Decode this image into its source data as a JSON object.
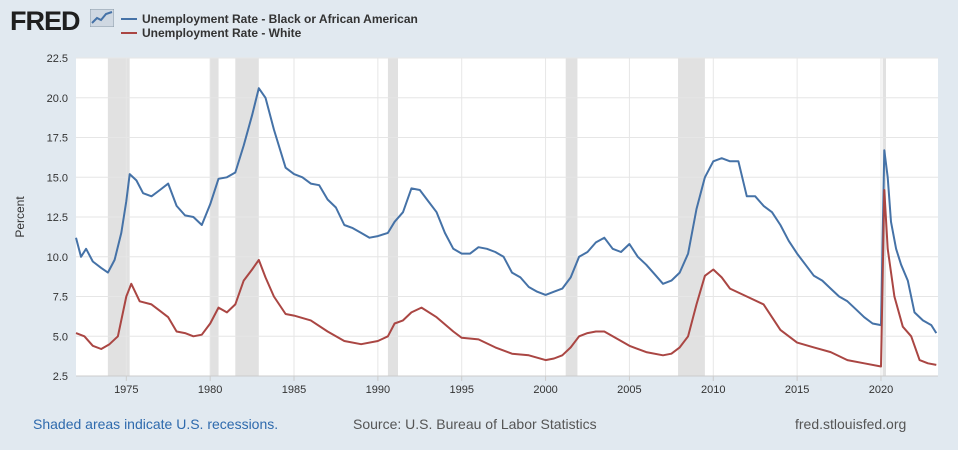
{
  "header": {
    "logo_text": "FRED",
    "logo_icon": "chart-line-icon"
  },
  "footer": {
    "recession_note": "Shaded areas indicate U.S. recessions.",
    "source": "Source: U.S. Bureau of Labor Statistics",
    "site": "fred.stlouisfed.org"
  },
  "chart_data": {
    "type": "line",
    "title": "",
    "xlabel": "",
    "ylabel": "Percent",
    "xlim": [
      1972.0,
      2023.4
    ],
    "ylim": [
      2.5,
      22.5
    ],
    "yticks": [
      2.5,
      5.0,
      7.5,
      10.0,
      12.5,
      15.0,
      17.5,
      20.0,
      22.5
    ],
    "ytick_labels": [
      "2.5",
      "5.0",
      "7.5",
      "10.0",
      "12.5",
      "15.0",
      "17.5",
      "20.0",
      "22.5"
    ],
    "xticks": [
      1975,
      1980,
      1985,
      1990,
      1995,
      2000,
      2005,
      2010,
      2015,
      2020
    ],
    "xtick_labels": [
      "1975",
      "1980",
      "1985",
      "1990",
      "1995",
      "2000",
      "2005",
      "2010",
      "2015",
      "2020"
    ],
    "grid": true,
    "legend": "top-left",
    "recessions": [
      [
        1973.9,
        1975.2
      ],
      [
        1980.0,
        1980.5
      ],
      [
        1981.5,
        1982.9
      ],
      [
        1990.6,
        1991.2
      ],
      [
        2001.2,
        2001.9
      ],
      [
        2007.9,
        2009.5
      ],
      [
        2020.1,
        2020.3
      ]
    ],
    "series": [
      {
        "name": "Unemployment Rate - Black or African American",
        "color": "#4572a7",
        "x": [
          1972.0,
          1972.3,
          1972.6,
          1973.0,
          1973.5,
          1973.9,
          1974.3,
          1974.7,
          1975.0,
          1975.2,
          1975.6,
          1976.0,
          1976.5,
          1977.0,
          1977.5,
          1978.0,
          1978.5,
          1979.0,
          1979.5,
          1980.0,
          1980.5,
          1981.0,
          1981.5,
          1982.0,
          1982.5,
          1982.9,
          1983.3,
          1983.8,
          1984.5,
          1985.0,
          1985.5,
          1986.0,
          1986.5,
          1987.0,
          1987.5,
          1988.0,
          1988.5,
          1989.0,
          1989.5,
          1990.0,
          1990.6,
          1991.0,
          1991.5,
          1992.0,
          1992.5,
          1993.0,
          1993.5,
          1994.0,
          1994.5,
          1995.0,
          1995.5,
          1996.0,
          1996.5,
          1997.0,
          1997.5,
          1998.0,
          1998.5,
          1999.0,
          1999.5,
          2000.0,
          2000.5,
          2001.0,
          2001.5,
          2002.0,
          2002.5,
          2003.0,
          2003.5,
          2004.0,
          2004.5,
          2005.0,
          2005.5,
          2006.0,
          2006.5,
          2007.0,
          2007.5,
          2008.0,
          2008.5,
          2009.0,
          2009.5,
          2010.0,
          2010.5,
          2011.0,
          2011.5,
          2012.0,
          2012.5,
          2013.0,
          2013.5,
          2014.0,
          2014.5,
          2015.0,
          2015.5,
          2016.0,
          2016.5,
          2017.0,
          2017.5,
          2018.0,
          2018.5,
          2019.0,
          2019.5,
          2020.0,
          2020.2,
          2020.4,
          2020.6,
          2020.9,
          2021.2,
          2021.6,
          2022.0,
          2022.5,
          2023.0,
          2023.3
        ],
        "values": [
          11.2,
          10.0,
          10.5,
          9.7,
          9.3,
          9.0,
          9.8,
          11.5,
          13.5,
          15.2,
          14.8,
          14.0,
          13.8,
          14.2,
          14.6,
          13.2,
          12.6,
          12.5,
          12.0,
          13.3,
          14.9,
          15.0,
          15.3,
          17.0,
          18.9,
          20.6,
          20.0,
          18.0,
          15.6,
          15.2,
          15.0,
          14.6,
          14.5,
          13.6,
          13.1,
          12.0,
          11.8,
          11.5,
          11.2,
          11.3,
          11.5,
          12.2,
          12.8,
          14.3,
          14.2,
          13.5,
          12.8,
          11.5,
          10.5,
          10.2,
          10.2,
          10.6,
          10.5,
          10.3,
          10.0,
          9.0,
          8.7,
          8.1,
          7.8,
          7.6,
          7.8,
          8.0,
          8.7,
          10.0,
          10.3,
          10.9,
          11.2,
          10.5,
          10.3,
          10.8,
          10.0,
          9.5,
          8.9,
          8.3,
          8.5,
          9.0,
          10.2,
          13.0,
          15.0,
          16.0,
          16.2,
          16.0,
          16.0,
          13.8,
          13.8,
          13.2,
          12.8,
          12.0,
          11.0,
          10.2,
          9.5,
          8.8,
          8.5,
          8.0,
          7.5,
          7.2,
          6.7,
          6.2,
          5.8,
          5.7,
          16.7,
          15.0,
          12.2,
          10.5,
          9.5,
          8.5,
          6.5,
          6.0,
          5.7,
          5.2
        ]
      },
      {
        "name": "Unemployment Rate - White",
        "color": "#aa4643",
        "x": [
          1972.0,
          1972.5,
          1973.0,
          1973.5,
          1974.0,
          1974.5,
          1975.0,
          1975.3,
          1975.8,
          1976.5,
          1977.0,
          1977.5,
          1978.0,
          1978.5,
          1979.0,
          1979.5,
          1980.0,
          1980.5,
          1981.0,
          1981.5,
          1982.0,
          1982.5,
          1982.9,
          1983.3,
          1983.8,
          1984.5,
          1985.0,
          1986.0,
          1987.0,
          1988.0,
          1989.0,
          1990.0,
          1990.6,
          1991.0,
          1991.5,
          1992.0,
          1992.6,
          1993.5,
          1994.5,
          1995.0,
          1996.0,
          1997.0,
          1998.0,
          1999.0,
          2000.0,
          2000.5,
          2001.0,
          2001.5,
          2002.0,
          2002.5,
          2003.0,
          2003.5,
          2004.0,
          2005.0,
          2006.0,
          2007.0,
          2007.5,
          2008.0,
          2008.5,
          2009.0,
          2009.5,
          2010.0,
          2010.5,
          2011.0,
          2012.0,
          2013.0,
          2014.0,
          2015.0,
          2016.0,
          2017.0,
          2018.0,
          2019.0,
          2020.0,
          2020.2,
          2020.4,
          2020.8,
          2021.3,
          2021.8,
          2022.3,
          2022.8,
          2023.3
        ],
        "values": [
          5.2,
          5.0,
          4.4,
          4.2,
          4.5,
          5.0,
          7.5,
          8.3,
          7.2,
          7.0,
          6.6,
          6.2,
          5.3,
          5.2,
          5.0,
          5.1,
          5.8,
          6.8,
          6.5,
          7.0,
          8.5,
          9.2,
          9.8,
          8.7,
          7.5,
          6.4,
          6.3,
          6.0,
          5.3,
          4.7,
          4.5,
          4.7,
          5.0,
          5.8,
          6.0,
          6.5,
          6.8,
          6.2,
          5.3,
          4.9,
          4.8,
          4.3,
          3.9,
          3.8,
          3.5,
          3.6,
          3.8,
          4.3,
          5.0,
          5.2,
          5.3,
          5.3,
          5.0,
          4.4,
          4.0,
          3.8,
          3.9,
          4.3,
          5.0,
          7.0,
          8.8,
          9.2,
          8.7,
          8.0,
          7.5,
          7.0,
          5.4,
          4.6,
          4.3,
          4.0,
          3.5,
          3.3,
          3.1,
          14.2,
          10.5,
          7.5,
          5.6,
          5.0,
          3.5,
          3.3,
          3.2
        ]
      }
    ]
  }
}
